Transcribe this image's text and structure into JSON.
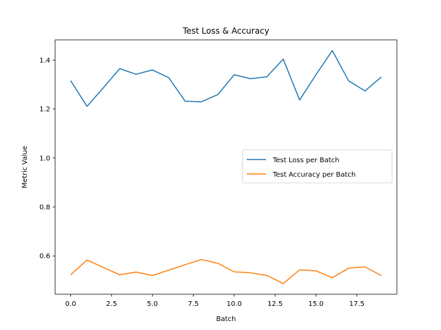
{
  "chart_data": {
    "type": "line",
    "title": "Test Loss & Accuracy",
    "xlabel": "Batch",
    "ylabel": "Metric Value",
    "x": [
      0,
      1,
      2,
      3,
      4,
      5,
      6,
      7,
      8,
      9,
      10,
      11,
      12,
      13,
      14,
      15,
      16,
      17,
      18,
      19
    ],
    "series": [
      {
        "name": "Test Loss per Batch",
        "color": "#1f77b4",
        "values": [
          1.316,
          1.211,
          1.287,
          1.365,
          1.342,
          1.36,
          1.328,
          1.232,
          1.23,
          1.259,
          1.34,
          1.324,
          1.332,
          1.404,
          1.237,
          1.34,
          1.439,
          1.315,
          1.274,
          1.331
        ]
      },
      {
        "name": "Test Accuracy per Batch",
        "color": "#ff7f0e",
        "values": [
          0.523,
          0.583,
          0.553,
          0.523,
          0.534,
          0.52,
          0.542,
          0.564,
          0.585,
          0.57,
          0.535,
          0.531,
          0.52,
          0.487,
          0.543,
          0.539,
          0.511,
          0.55,
          0.555,
          0.52
        ]
      }
    ],
    "xlim": [
      -0.95,
      19.95
    ],
    "ylim": [
      0.4434,
      1.4826
    ],
    "xticks": [
      0,
      2.5,
      5,
      7.5,
      10,
      12.5,
      15,
      17.5
    ],
    "xtick_labels": [
      "0.0",
      "2.5",
      "5.0",
      "7.5",
      "10.0",
      "12.5",
      "15.0",
      "17.5"
    ],
    "yticks": [
      0.6,
      0.8,
      1.0,
      1.2,
      1.4
    ],
    "ytick_labels": [
      "0.6",
      "0.8",
      "1.0",
      "1.2",
      "1.4"
    ],
    "grid": false,
    "legend_position": "center-right"
  }
}
